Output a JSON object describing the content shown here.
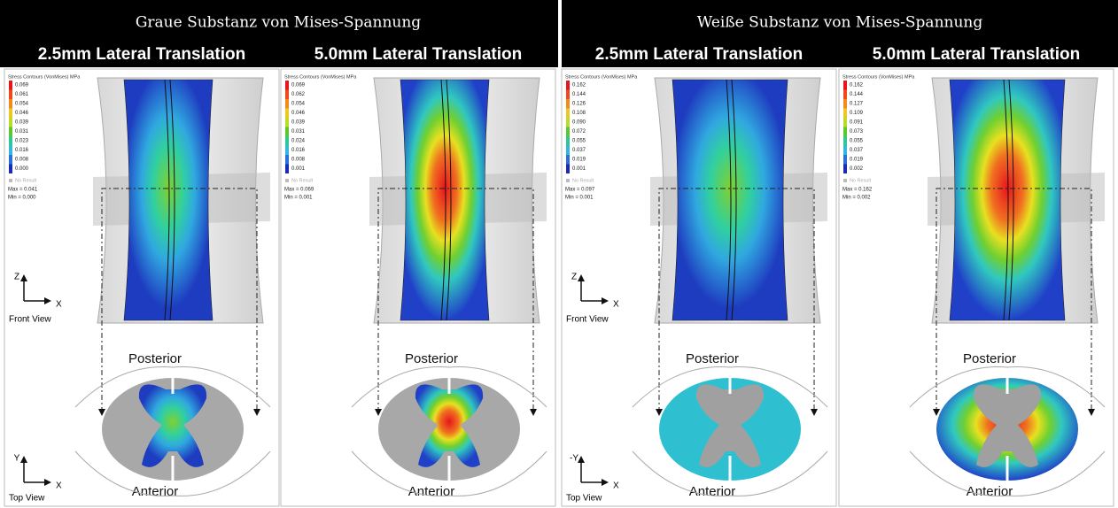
{
  "groups": [
    {
      "title": "Graue Substanz von Mises-Spannung",
      "panels": [
        {
          "heading": "2.5mm Lateral Translation",
          "legend_title": "Stress Contours (VonMises) MPa",
          "legend_values": [
            "0.069",
            "0.061",
            "0.054",
            "0.046",
            "0.039",
            "0.031",
            "0.023",
            "0.016",
            "0.008",
            "0.000"
          ],
          "no_result": "No Result",
          "max": "Max = 0.041",
          "min": "Min = 0.000",
          "posterior": "Posterior",
          "anterior": "Anterior",
          "front_axes": {
            "vertical": "Z",
            "horizontal": "X",
            "label": "Front View"
          },
          "top_axes": {
            "vertical": "Y",
            "horizontal": "X",
            "label": "Top View"
          }
        },
        {
          "heading": "5.0mm Lateral Translation",
          "legend_title": "Stress Contours (VonMises) MPa",
          "legend_values": [
            "0.069",
            "0.062",
            "0.054",
            "0.046",
            "0.039",
            "0.031",
            "0.024",
            "0.016",
            "0.008",
            "0.001"
          ],
          "no_result": "No Result",
          "max": "Max = 0.069",
          "min": "Min = 0.001",
          "posterior": "Posterior",
          "anterior": "Anterior"
        }
      ]
    },
    {
      "title": "Weiße Substanz von Mises-Spannung",
      "panels": [
        {
          "heading": "2.5mm Lateral Translation",
          "legend_title": "Stress Contours (VonMises) MPa",
          "legend_values": [
            "0.162",
            "0.144",
            "0.126",
            "0.108",
            "0.090",
            "0.072",
            "0.055",
            "0.037",
            "0.019",
            "0.001"
          ],
          "no_result": "No Result",
          "max": "Max = 0.097",
          "min": "Min = 0.001",
          "posterior": "Posterior",
          "anterior": "Anterior",
          "front_axes": {
            "vertical": "Z",
            "horizontal": "X",
            "label": "Front View"
          },
          "top_axes": {
            "vertical": "-Y",
            "horizontal": "X",
            "label": "Top View"
          }
        },
        {
          "heading": "5.0mm Lateral Translation",
          "legend_title": "Stress Contours (VonMises) MPa",
          "legend_values": [
            "0.162",
            "0.144",
            "0.127",
            "0.109",
            "0.091",
            "0.073",
            "0.055",
            "0.037",
            "0.019",
            "0.002"
          ],
          "no_result": "No Result",
          "max": "Max = 0.162",
          "min": "Min = 0.002",
          "posterior": "Posterior",
          "anterior": "Anterior"
        }
      ]
    }
  ]
}
